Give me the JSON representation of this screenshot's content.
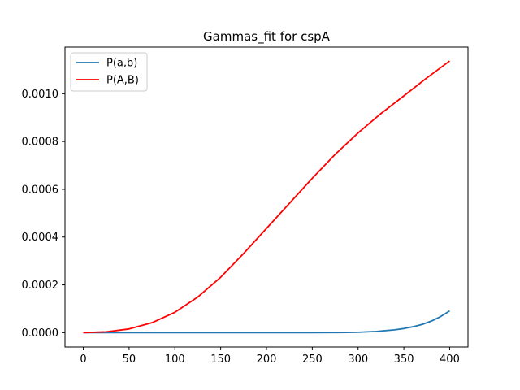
{
  "chart_data": {
    "type": "line",
    "title": "Gammas_fit for cspA",
    "xlabel": "",
    "ylabel": "",
    "xlim": [
      -20,
      420
    ],
    "ylim": [
      -6e-05,
      0.001195
    ],
    "xticks": [
      0,
      50,
      100,
      150,
      200,
      250,
      300,
      350,
      400
    ],
    "xtick_labels": [
      "0",
      "50",
      "100",
      "150",
      "200",
      "250",
      "300",
      "350",
      "400"
    ],
    "yticks": [
      0.0,
      0.0002,
      0.0004,
      0.0006,
      0.0008,
      0.001
    ],
    "ytick_labels": [
      "0.0000",
      "0.0002",
      "0.0004",
      "0.0006",
      "0.0008",
      "0.0010"
    ],
    "grid": false,
    "legend_position": "upper-left",
    "series": [
      {
        "name": "P(a,b)",
        "color": "#1f77b4",
        "x": [
          0,
          50,
          100,
          150,
          200,
          250,
          280,
          300,
          320,
          340,
          350,
          360,
          370,
          380,
          390,
          400
        ],
        "y": [
          0,
          0,
          0,
          0,
          0,
          0,
          4e-07,
          1.7e-06,
          5e-06,
          1.19e-05,
          1.72e-05,
          2.48e-05,
          3.44e-05,
          4.84e-05,
          6.71e-05,
          9.1e-05
        ]
      },
      {
        "name": "P(A,B)",
        "color": "#ff0000",
        "x": [
          0,
          25,
          50,
          75,
          100,
          125,
          150,
          175,
          200,
          225,
          250,
          275,
          300,
          325,
          350,
          375,
          400
        ],
        "y": [
          0,
          3.4e-06,
          1.55e-05,
          4.15e-05,
          8.52e-05,
          0.000149,
          0.000232,
          0.000331,
          0.000436,
          0.000541,
          0.000646,
          0.000746,
          0.000836,
          0.000917,
          0.000991,
          0.001066,
          0.001137
        ]
      }
    ]
  }
}
